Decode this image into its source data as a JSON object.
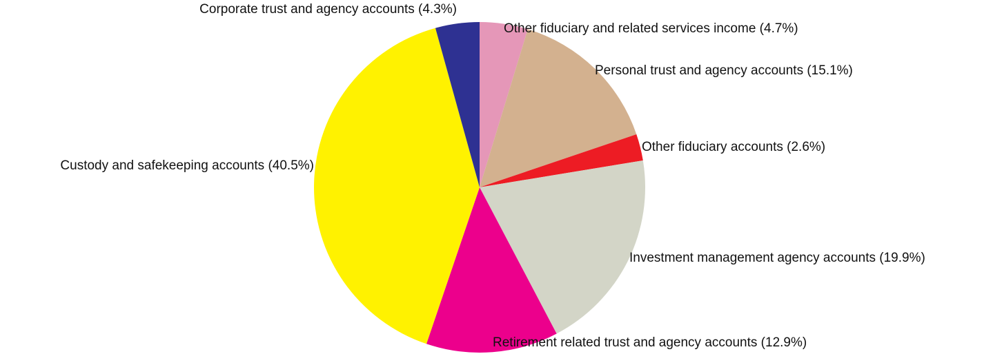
{
  "chart_data": {
    "type": "pie",
    "categories": [
      "Other fiduciary and related services income",
      "Personal trust and agency accounts",
      "Other fiduciary accounts",
      "Investment management agency accounts",
      "Retirement related trust and agency accounts",
      "Custody and safekeeping accounts",
      "Corporate trust and agency accounts"
    ],
    "values": [
      4.7,
      15.1,
      2.6,
      19.9,
      12.9,
      40.5,
      4.3
    ],
    "value_labels": [
      "(4.7%)",
      "(15.1%)",
      "(2.6%)",
      "(19.9%)",
      "(12.9%)",
      "(40.5%)",
      "(4.3%)"
    ],
    "colors": [
      "#e597b8",
      "#d3b18f",
      "#ed1c24",
      "#d3d5c7",
      "#ec008c",
      "#fff200",
      "#2e3192"
    ]
  }
}
